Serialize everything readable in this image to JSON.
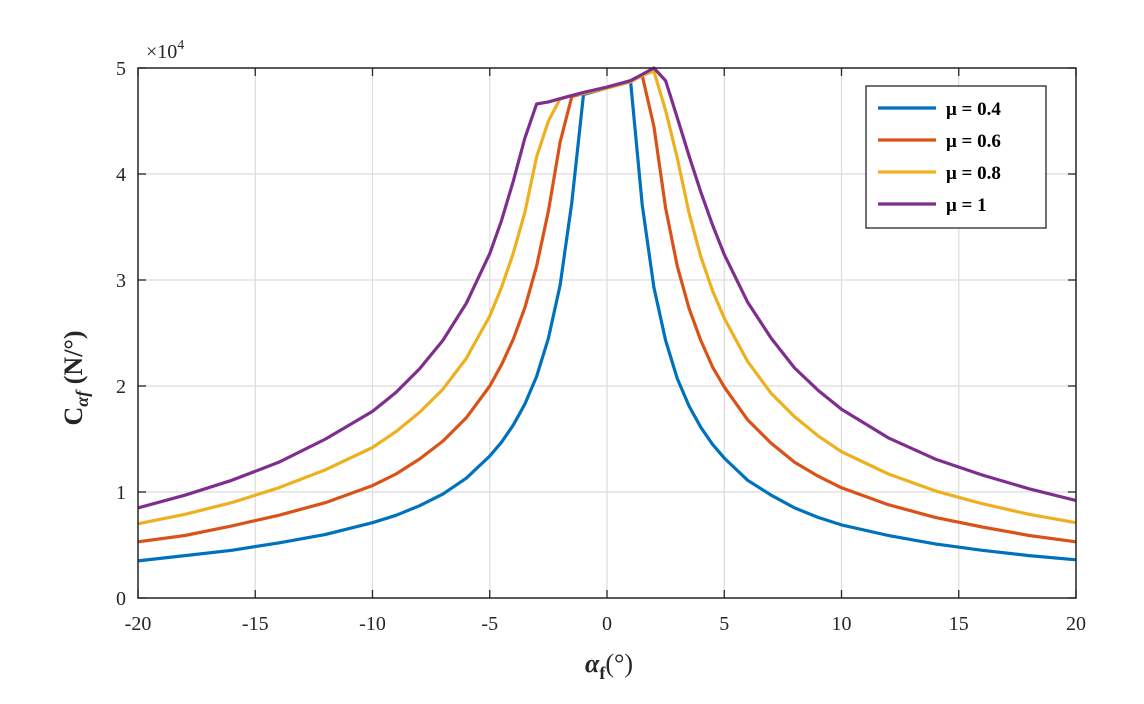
{
  "chart_data": {
    "type": "line",
    "title": "",
    "xlabel": "α_f(°)",
    "xlabel_main": "α",
    "xlabel_sub": "f",
    "xlabel_unit": "(°)",
    "ylabel": "C_αf (N/°)",
    "ylabel_main": "C",
    "ylabel_sub": "αf",
    "ylabel_unit": " (N/°)",
    "exponent_label": "×10",
    "exponent_power": "4",
    "xlim": [
      -20,
      20
    ],
    "ylim": [
      0,
      5
    ],
    "xticks": [
      -20,
      -15,
      -10,
      -5,
      0,
      5,
      10,
      15,
      20
    ],
    "xtick_labels": [
      "-20",
      "-15",
      "-10",
      "-5",
      "0",
      "5",
      "10",
      "15",
      "20"
    ],
    "yticks": [
      0,
      1,
      2,
      3,
      4,
      5
    ],
    "ytick_labels": [
      "0",
      "1",
      "2",
      "3",
      "4",
      "5"
    ],
    "grid": true,
    "legend_position": "top-right",
    "x": [
      -20,
      -18,
      -16,
      -14,
      -12,
      -10,
      -9,
      -8,
      -7,
      -6,
      -5,
      -4.5,
      -4,
      -3.5,
      -3,
      -2.5,
      -2,
      -1.5,
      -1,
      0,
      1,
      1.5,
      2,
      2.5,
      3,
      3.5,
      4,
      4.5,
      5,
      6,
      7,
      8,
      9,
      10,
      12,
      14,
      16,
      18,
      20
    ],
    "series": [
      {
        "name": "μ = 0.4",
        "color": "#0072BD",
        "values": [
          0.35,
          0.4,
          0.45,
          0.52,
          0.6,
          0.71,
          0.78,
          0.87,
          0.98,
          1.13,
          1.34,
          1.47,
          1.63,
          1.83,
          2.09,
          2.45,
          2.95,
          3.73,
          4.75,
          4.81,
          4.88,
          3.71,
          2.93,
          2.43,
          2.07,
          1.81,
          1.61,
          1.45,
          1.32,
          1.11,
          0.97,
          0.85,
          0.76,
          0.69,
          0.59,
          0.51,
          0.45,
          0.4,
          0.36
        ]
      },
      {
        "name": "μ = 0.6",
        "color": "#D95319",
        "values": [
          0.53,
          0.59,
          0.68,
          0.78,
          0.9,
          1.06,
          1.17,
          1.31,
          1.48,
          1.7,
          2.0,
          2.2,
          2.44,
          2.74,
          3.13,
          3.65,
          4.3,
          4.73,
          4.76,
          4.81,
          4.87,
          4.93,
          4.45,
          3.68,
          3.13,
          2.73,
          2.43,
          2.18,
          1.99,
          1.68,
          1.46,
          1.28,
          1.15,
          1.04,
          0.88,
          0.76,
          0.67,
          0.59,
          0.53
        ]
      },
      {
        "name": "μ = 0.8",
        "color": "#EDB120",
        "values": [
          0.7,
          0.79,
          0.9,
          1.04,
          1.21,
          1.42,
          1.57,
          1.75,
          1.97,
          2.26,
          2.66,
          2.93,
          3.25,
          3.64,
          4.16,
          4.5,
          4.71,
          4.74,
          4.76,
          4.81,
          4.87,
          4.93,
          4.97,
          4.6,
          4.15,
          3.63,
          3.22,
          2.9,
          2.64,
          2.23,
          1.93,
          1.71,
          1.53,
          1.38,
          1.17,
          1.01,
          0.89,
          0.79,
          0.71
        ]
      },
      {
        "name": "μ = 1",
        "color": "#7E2F8E",
        "values": [
          0.85,
          0.97,
          1.11,
          1.28,
          1.5,
          1.76,
          1.94,
          2.16,
          2.43,
          2.78,
          3.25,
          3.56,
          3.93,
          4.34,
          4.66,
          4.68,
          4.71,
          4.74,
          4.77,
          4.82,
          4.88,
          4.94,
          5.0,
          4.88,
          4.53,
          4.17,
          3.83,
          3.52,
          3.24,
          2.79,
          2.45,
          2.17,
          1.96,
          1.78,
          1.51,
          1.31,
          1.16,
          1.03,
          0.92
        ]
      }
    ]
  }
}
